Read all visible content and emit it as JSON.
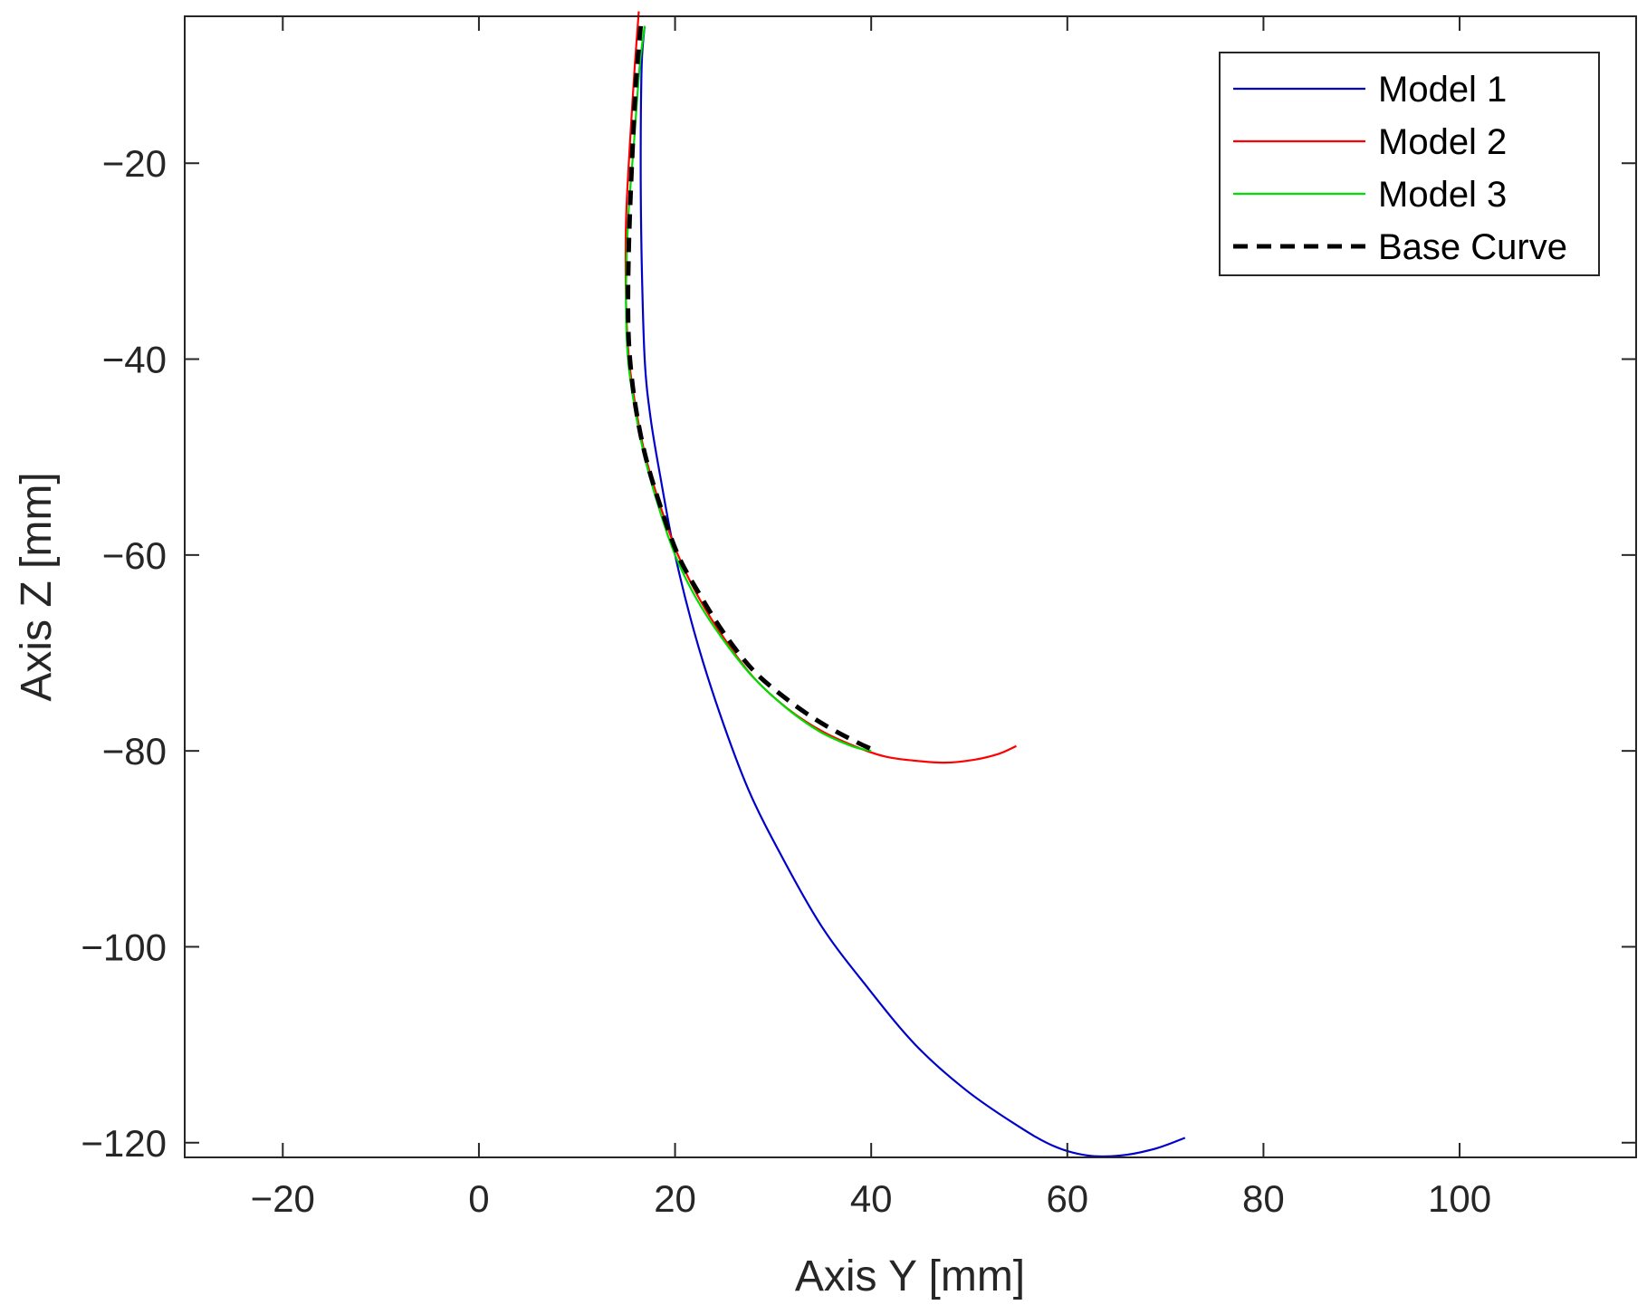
{
  "chart_data": {
    "type": "line",
    "title": "",
    "xlabel": "Axis Y [mm]",
    "ylabel": "Axis Z [mm]",
    "xlim": [
      -30,
      118
    ],
    "ylim": [
      -121.5,
      -5
    ],
    "xticks": [
      -20,
      0,
      20,
      40,
      60,
      80,
      100
    ],
    "yticks": [
      -120,
      -100,
      -80,
      -60,
      -40,
      -20
    ],
    "xtick_labels": [
      "−20",
      "0",
      "20",
      "40",
      "60",
      "80",
      "100"
    ],
    "ytick_labels": [
      "−120",
      "−100",
      "−80",
      "−60",
      "−40",
      "−20"
    ],
    "grid": false,
    "legend_position": "top-right",
    "series": [
      {
        "name": "Model 1",
        "color": "#0000cc",
        "style": "solid",
        "x": [
          16.9,
          16.6,
          16.5,
          16.6,
          16.9,
          17.5,
          18.5,
          20.0,
          22.0,
          24.5,
          27.5,
          31.0,
          35.0,
          39.5,
          44.5,
          49.5,
          54.5,
          58.5,
          62.0,
          65.5,
          69.0,
          72.0
        ],
        "y": [
          -6,
          -10,
          -20,
          -30,
          -40,
          -46,
          -52,
          -60,
          -68,
          -76,
          -84,
          -91,
          -98,
          -104,
          -110,
          -114.5,
          -118,
          -120.3,
          -121.3,
          -121.3,
          -120.6,
          -119.5
        ]
      },
      {
        "name": "Model 2",
        "color": "#ff0000",
        "style": "solid",
        "x": [
          16.3,
          15.9,
          15.4,
          15.0,
          15.0,
          15.3,
          16.0,
          17.0,
          18.5,
          20.3,
          22.5,
          25.0,
          28.0,
          31.5,
          35.0,
          38.5,
          41.5,
          44.5,
          47.5,
          50.5,
          53.0,
          54.8
        ],
        "y": [
          -4.5,
          -10,
          -18,
          -26,
          -34,
          -40,
          -45,
          -50,
          -55,
          -60,
          -64.5,
          -68.5,
          -72.5,
          -75.7,
          -78.0,
          -79.6,
          -80.6,
          -81.0,
          -81.2,
          -80.9,
          -80.3,
          -79.5
        ]
      },
      {
        "name": "Model 3",
        "color": "#00dd00",
        "style": "solid",
        "x": [
          16.9,
          16.4,
          15.8,
          15.2,
          15.0,
          15.2,
          15.9,
          16.9,
          18.3,
          20.0,
          22.2,
          24.8,
          27.8,
          31.2,
          34.7,
          38.0,
          40.0
        ],
        "y": [
          -6,
          -10,
          -18,
          -26,
          -34,
          -40,
          -45,
          -50,
          -55,
          -60,
          -64.5,
          -68.5,
          -72.3,
          -75.5,
          -78.0,
          -79.5,
          -80.0
        ]
      },
      {
        "name": "Base Curve",
        "color": "#000000",
        "style": "dashed",
        "x": [
          16.5,
          16.0,
          15.6,
          15.3,
          15.2,
          15.4,
          16.0,
          17.0,
          18.5,
          20.3,
          22.5,
          25.0,
          28.0,
          31.5,
          35.0,
          38.3,
          40.0
        ],
        "y": [
          -6,
          -12,
          -20,
          -28,
          -35,
          -40,
          -45,
          -50,
          -55,
          -60,
          -64,
          -68,
          -71.8,
          -74.8,
          -77.2,
          -79.0,
          -79.8
        ]
      }
    ]
  }
}
